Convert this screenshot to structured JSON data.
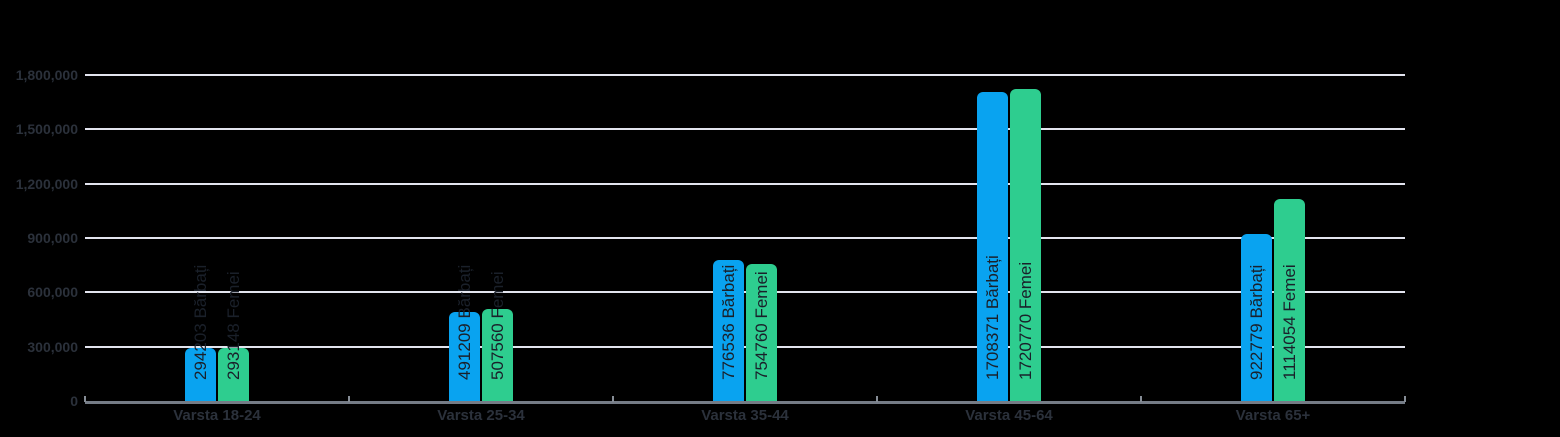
{
  "chart_data": {
    "type": "bar",
    "title": "",
    "xlabel": "",
    "ylabel": "",
    "categories": [
      "Varsta 18-24",
      "Varsta 25-34",
      "Varsta 35-44",
      "Varsta 45-64",
      "Varsta 65+"
    ],
    "series": [
      {
        "name": "Bărbați",
        "color": "#09A3F0",
        "values": [
          294203,
          491209,
          776536,
          1708371,
          922779
        ]
      },
      {
        "name": "Femei",
        "color": "#2ECD8F",
        "values": [
          293148,
          507560,
          754760,
          1720770,
          1114054
        ]
      }
    ],
    "bar_labels": [
      [
        "294203 Bărbați",
        "491209 Bărbați",
        "776536 Bărbați",
        "1708371 Bărbați",
        "922779 Bărbați"
      ],
      [
        "293148 Femei",
        "507560 Femei",
        "754760 Femei",
        "1720770 Femei",
        "1114054 Femei"
      ]
    ],
    "y_ticks": [
      {
        "label": "1,800,000",
        "value": 1800000
      },
      {
        "label": "1,500,000",
        "value": 1500000
      },
      {
        "label": "1,200,000",
        "value": 1200000
      },
      {
        "label": "900,000",
        "value": 900000
      },
      {
        "label": "600,000",
        "value": 600000
      },
      {
        "label": "300,000",
        "value": 300000
      },
      {
        "label": "0",
        "value": 0
      }
    ],
    "ylim": [
      0,
      1800000
    ],
    "grid": true,
    "legend_position": "none"
  },
  "colors": {
    "background": "#000000",
    "gridline": "#E2E4EE",
    "axis_line": "#757C86",
    "axis_tick": "#868D96",
    "axis_label_text": "#2B313B",
    "bar_label_text": "#1A202A"
  }
}
